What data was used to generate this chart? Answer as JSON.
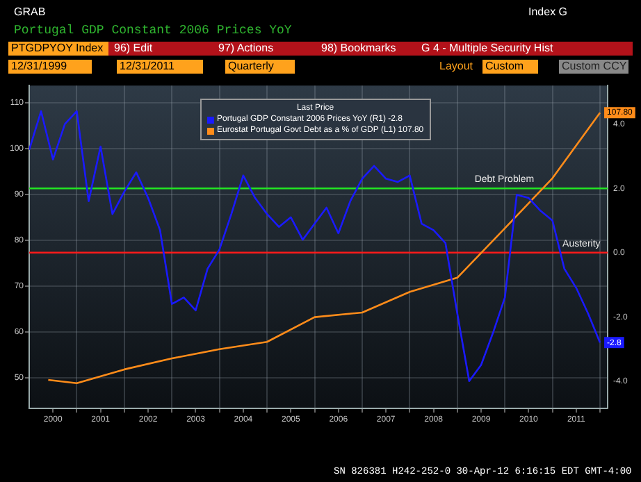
{
  "chart_data": {
    "type": "line",
    "title": "Portugal GDP Constant 2006 Prices YoY",
    "legend_title": "Last Price",
    "annotations": [
      "GRAB",
      "Index G",
      "PTGDPYOY Index",
      "96) Edit",
      "97) Actions",
      "98) Bookmarks",
      "G 4 - Multiple Security Hist",
      "12/31/1999",
      "12/31/2011",
      "Quarterly",
      "Layout",
      "Custom",
      "Custom CCY",
      "SN 826381 H242-252-0 30-Apr-12 6:16:15 EDT GMT-4:00"
    ],
    "series": [
      {
        "name": "Portugal GDP Constant 2006 Prices YoY (R1) -2.8",
        "color": "#1a1aff",
        "axis": "y2",
        "x": [
          2000,
          2000.25,
          2000.5,
          2000.75,
          2001,
          2001.25,
          2001.5,
          2001.75,
          2002,
          2002.25,
          2002.5,
          2002.75,
          2003,
          2003.25,
          2003.5,
          2003.75,
          2004,
          2004.25,
          2004.5,
          2004.75,
          2005,
          2005.25,
          2005.5,
          2005.75,
          2006,
          2006.25,
          2006.5,
          2006.75,
          2007,
          2007.25,
          2007.5,
          2007.75,
          2008,
          2008.25,
          2008.5,
          2008.75,
          2009,
          2009.25,
          2009.5,
          2009.75,
          2010,
          2010.25,
          2010.5,
          2010.75,
          2011,
          2011.25,
          2011.5,
          2011.75,
          2012
        ],
        "values": [
          3.2,
          4.4,
          2.9,
          4.0,
          4.4,
          1.6,
          3.3,
          1.2,
          1.9,
          2.5,
          1.7,
          0.7,
          -1.6,
          -1.4,
          -1.8,
          -0.5,
          0.1,
          1.2,
          2.4,
          1.7,
          1.2,
          0.8,
          1.1,
          0.4,
          0.9,
          1.4,
          0.6,
          1.6,
          2.3,
          2.7,
          2.3,
          2.2,
          2.4,
          0.9,
          0.7,
          0.3,
          -1.9,
          -4.0,
          -3.5,
          -2.5,
          -1.4,
          1.8,
          1.7,
          1.3,
          1.0,
          -0.5,
          -1.1,
          -1.9,
          -2.8
        ],
        "value_labels": [
          null,
          null,
          null,
          null,
          null,
          null,
          null,
          null,
          null,
          null,
          null,
          null,
          null,
          null,
          null,
          null,
          null,
          null,
          null,
          null,
          null,
          null,
          null,
          null,
          null,
          null,
          null,
          null,
          null,
          null,
          null,
          null,
          null,
          null,
          null,
          null,
          null,
          null,
          null,
          null,
          null,
          null,
          null,
          null,
          null,
          null,
          null,
          null,
          "-2.8"
        ]
      },
      {
        "name": "Eurostat Portugal Govt Debt as a % of GDP (L1) 107.80",
        "color": "#ff8c1a",
        "x": [
          2000.4,
          2001,
          2002,
          2003,
          2004,
          2005,
          2006,
          2007,
          2008,
          2009,
          2010,
          2011,
          2012
        ],
        "values": [
          49.5,
          48.8,
          51.8,
          54.2,
          56.2,
          57.8,
          63.2,
          64.2,
          68.7,
          71.8,
          82.6,
          93.5,
          107.8
        ],
        "value_labels": [
          null,
          null,
          null,
          null,
          null,
          null,
          null,
          null,
          null,
          null,
          null,
          null,
          "107.80"
        ]
      }
    ],
    "xlim": [
      2000,
      2012.16
    ],
    "xticks": [
      {
        "value": 2000.5,
        "label": "2000"
      },
      {
        "value": 2001,
        "label": null
      },
      {
        "value": 2001.5,
        "label": "2001"
      },
      {
        "value": 2002,
        "label": null
      },
      {
        "value": 2002.5,
        "label": "2002"
      },
      {
        "value": 2003,
        "label": null
      },
      {
        "value": 2003.5,
        "label": "2003"
      },
      {
        "value": 2004,
        "label": null
      },
      {
        "value": 2004.5,
        "label": "2004"
      },
      {
        "value": 2005,
        "label": null
      },
      {
        "value": 2005.5,
        "label": "2005"
      },
      {
        "value": 2006,
        "label": null
      },
      {
        "value": 2006.5,
        "label": "2006"
      },
      {
        "value": 2007,
        "label": null
      },
      {
        "value": 2007.5,
        "label": "2007"
      },
      {
        "value": 2008,
        "label": null
      },
      {
        "value": 2008.5,
        "label": "2008"
      },
      {
        "value": 2009,
        "label": null
      },
      {
        "value": 2009.5,
        "label": "2009"
      },
      {
        "value": 2010,
        "label": null
      },
      {
        "value": 2010.5,
        "label": "2010"
      },
      {
        "value": 2011,
        "label": null
      },
      {
        "value": 2011.5,
        "label": "2011"
      },
      {
        "value": 2012,
        "label": null
      }
    ],
    "ylim": [
      43.3,
      113.7
    ],
    "yticks": [
      50,
      60,
      70,
      80,
      90,
      100,
      110
    ],
    "y2lim": [
      -4.85,
      5.2
    ],
    "y2ticks": [
      {
        "value": -4,
        "label": "-4.0"
      },
      {
        "value": -2,
        "label": "-2.0"
      },
      {
        "value": 0,
        "label": "0.0"
      },
      {
        "value": 2,
        "label": "2.0"
      },
      {
        "value": 4,
        "label": "4.0"
      }
    ],
    "ref_lines": [
      {
        "axis": "y2",
        "value": 2.0,
        "color": "#22e622",
        "label": "Debt Problem"
      },
      {
        "axis": "y2",
        "value": 0.0,
        "color": "#ff1a1a",
        "label": "Austerity"
      }
    ],
    "grid": true,
    "legend": "top",
    "marker": "none",
    "line_style": "solid"
  }
}
